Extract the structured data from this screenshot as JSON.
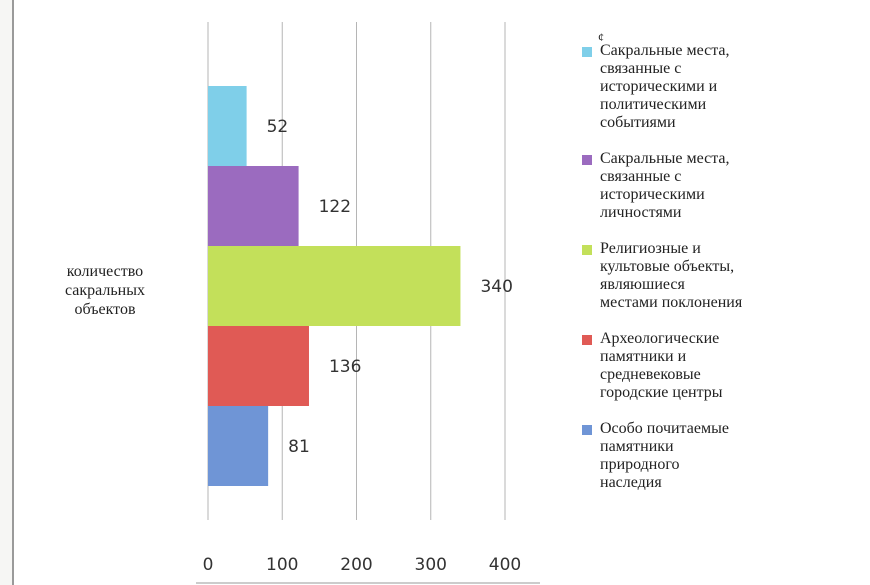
{
  "chart_data": {
    "type": "bar",
    "orientation": "horizontal",
    "categories": [
      "количество\nсакральных\nобъектов"
    ],
    "series": [
      {
        "name": "Сакральные места,\nсвязанные с\nисторическими и\nполитическими\nсобытиями",
        "values": [
          52
        ],
        "color": "#7fcfe9"
      },
      {
        "name": "Сакральные места,\nсвязанные с\nисторическими\nличностями",
        "values": [
          122
        ],
        "color": "#9b6bbf"
      },
      {
        "name": "Религиозные и\nкультовые объекты,\nявляюшиеся\nместами поклонения",
        "values": [
          340
        ],
        "color": "#c3e05a"
      },
      {
        "name": "Археологические\nпамятники и\nсредневековые\nгородские центры",
        "values": [
          136
        ],
        "color": "#e05a55"
      },
      {
        "name": "Особо почитаемые\nпамятники\nприродного\nнаследия",
        "values": [
          81
        ],
        "color": "#6f95d6"
      }
    ],
    "data_labels": [
      "52",
      "122",
      "340",
      "136",
      "81"
    ],
    "xticks": [
      "0",
      "100",
      "200",
      "300",
      "400"
    ],
    "xlim": [
      0,
      400
    ],
    "grid": "vertical",
    "legend_position": "right"
  },
  "legend_mark": "¢"
}
